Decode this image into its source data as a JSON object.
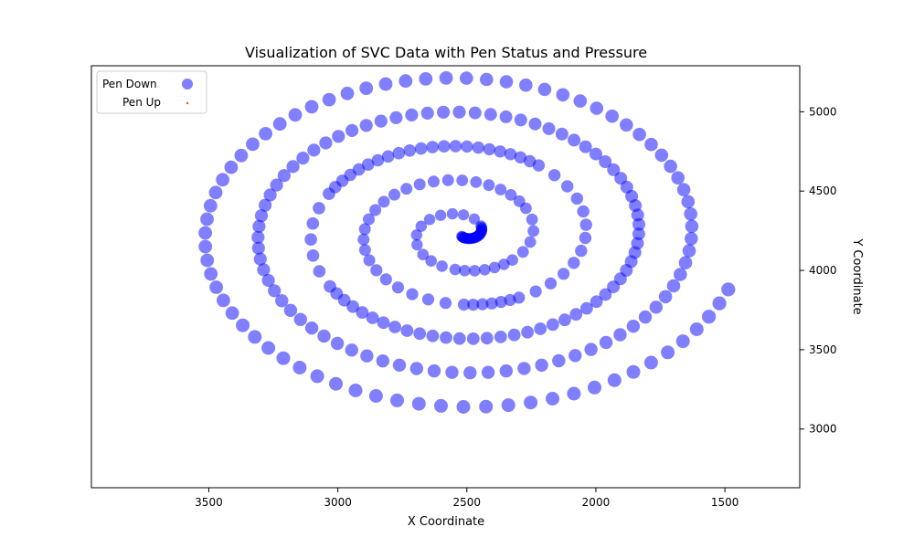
{
  "chart_data": {
    "type": "scatter",
    "title": "Visualization of SVC Data with Pen Status and Pressure",
    "xlabel": "X Coordinate",
    "ylabel": "Y Coordinate",
    "x_axis_reversed": true,
    "y_axis_side": "right",
    "xlim": [
      3955,
      1210
    ],
    "ylim": [
      2630,
      5290
    ],
    "x_ticks": [
      3500,
      3000,
      2500,
      2000,
      1500
    ],
    "y_ticks": [
      3000,
      3500,
      4000,
      4500,
      5000
    ],
    "x_tick_labels": [
      "3500",
      "3000",
      "2500",
      "2000",
      "1500"
    ],
    "y_tick_labels": [
      "3000",
      "3500",
      "4000",
      "4500",
      "5000"
    ],
    "grid": false,
    "legend_position": "top-left",
    "series": [
      {
        "name": "Pen Down",
        "color": "#0000ff",
        "marker": "circle",
        "opacity": 0.5,
        "trace": {
          "kind": "spiral",
          "center_x": 2520,
          "center_y": 4230,
          "start_radius_x": 20,
          "start_radius_y": 15,
          "growth_x": 205,
          "growth_y": 215,
          "turns": 5.2
        }
      },
      {
        "name": "Pen Up",
        "color": "#ff4500",
        "marker": "point",
        "opacity": 1.0
      }
    ]
  }
}
